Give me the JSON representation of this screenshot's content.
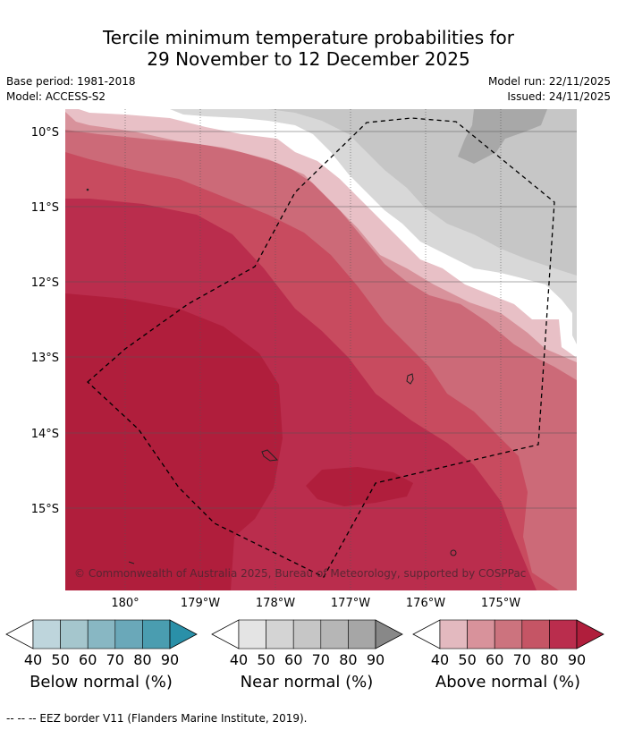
{
  "title_line1": "Tercile minimum temperature probabilities for",
  "title_line2": "29 November to 12 December 2025",
  "meta": {
    "base_period": "Base period: 1981-2018",
    "model": "Model: ACCESS-S2",
    "model_run": "Model run: 22/11/2025",
    "issued": "Issued: 24/11/2025"
  },
  "map": {
    "lat_labels": [
      "10°S",
      "11°S",
      "12°S",
      "13°S",
      "14°S",
      "15°S"
    ],
    "lon_labels": [
      "180°",
      "179°W",
      "178°W",
      "177°W",
      "176°W",
      "175°W"
    ],
    "copyright": "© Commonwealth of Australia 2025, Bureau of Meteorology, supported by COSPPac",
    "colors": {
      "above_80": "#ba2d4d",
      "above_90": "#b01e3c",
      "above_70": "#c84b5f",
      "above_60": "#cc6a78",
      "above_50": "#d8929b",
      "near_40": "#d8d8d8",
      "near_50": "#c6c6c6",
      "near_60": "#a8a8a8"
    }
  },
  "legends": [
    {
      "label": "Below normal (%)",
      "ticks": [
        "40",
        "50",
        "60",
        "70",
        "80",
        "90"
      ],
      "colors": [
        "#bed5dc",
        "#a5c6cd",
        "#88b7c3",
        "#6aa8b9",
        "#4a9db0",
        "#2a90a8"
      ]
    },
    {
      "label": "Near normal (%)",
      "ticks": [
        "40",
        "50",
        "60",
        "70",
        "80",
        "90"
      ],
      "colors": [
        "#e4e4e4",
        "#d4d4d4",
        "#c6c6c6",
        "#b6b6b6",
        "#a6a6a6",
        "#888888"
      ]
    },
    {
      "label": "Above normal (%)",
      "ticks": [
        "40",
        "50",
        "60",
        "70",
        "80",
        "90"
      ],
      "colors": [
        "#e3b9bf",
        "#d8929b",
        "#cc737e",
        "#c55565",
        "#ba2d4d",
        "#b01e3c"
      ]
    }
  ],
  "footer": "--  --  -- EEZ border V11 (Flanders Marine Institute, 2019)."
}
